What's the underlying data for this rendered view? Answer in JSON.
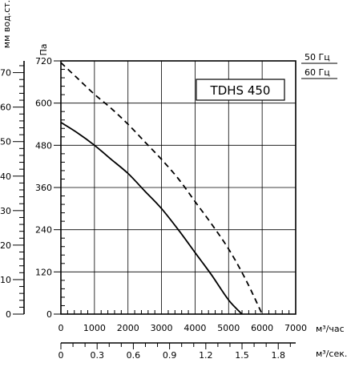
{
  "chart_data": {
    "type": "line",
    "title": "TDHS 450",
    "x_primary": {
      "label": "м³/час",
      "ticks": [
        0,
        1000,
        2000,
        3000,
        4000,
        5000,
        6000,
        7000
      ],
      "range": [
        0,
        7000
      ]
    },
    "x_secondary": {
      "label": "м³/сек.",
      "ticks": [
        "0",
        "0.3",
        "0.6",
        "0.9",
        "1.2",
        "1.5",
        "1.8"
      ],
      "values": [
        0,
        0.3,
        0.6,
        0.9,
        1.2,
        1.5,
        1.8
      ]
    },
    "y_primary": {
      "label": "Па",
      "ticks": [
        0,
        120,
        240,
        360,
        480,
        600,
        720
      ],
      "range": [
        0,
        720
      ]
    },
    "y_secondary": {
      "label": "мм вод.ст.",
      "ticks": [
        0,
        10,
        20,
        30,
        40,
        50,
        60,
        70
      ]
    },
    "legend": {
      "position": "top-right",
      "entries": [
        {
          "name": "50 Гц",
          "style": "solid"
        },
        {
          "name": "60 Гц",
          "style": "dashed"
        }
      ]
    },
    "series": [
      {
        "name": "50 Гц",
        "style": "solid",
        "x": [
          0,
          500,
          1000,
          1500,
          2000,
          2500,
          3000,
          3500,
          4000,
          4500,
          5000,
          5400
        ],
        "y": [
          545,
          515,
          480,
          440,
          400,
          350,
          300,
          240,
          175,
          110,
          40,
          0
        ]
      },
      {
        "name": "60 Гц",
        "style": "dashed",
        "x": [
          0,
          500,
          1000,
          1500,
          2000,
          2500,
          3000,
          3500,
          4000,
          4500,
          5000,
          5500,
          6000
        ],
        "y": [
          715,
          670,
          625,
          585,
          540,
          490,
          440,
          385,
          320,
          255,
          185,
          100,
          0
        ]
      }
    ],
    "grid": true
  }
}
